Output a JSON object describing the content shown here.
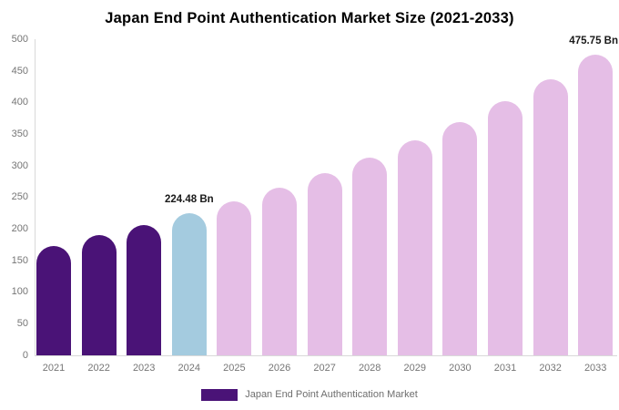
{
  "chart_data": {
    "type": "bar",
    "title": "Japan End Point Authentication Market Size (2021-2033)",
    "xlabel": "",
    "ylabel": "",
    "unit": "Bn",
    "categories": [
      "2021",
      "2022",
      "2023",
      "2024",
      "2025",
      "2026",
      "2027",
      "2028",
      "2029",
      "2030",
      "2031",
      "2032",
      "2033"
    ],
    "values": [
      173,
      190,
      207,
      224.48,
      244,
      265,
      288,
      313,
      340,
      369,
      402,
      437,
      475.75
    ],
    "bar_colors": [
      "#4A1377",
      "#4A1377",
      "#4A1377",
      "#A4CBDF",
      "#E5BEE6",
      "#E5BEE6",
      "#E5BEE6",
      "#E5BEE6",
      "#E5BEE6",
      "#E5BEE6",
      "#E5BEE6",
      "#E5BEE6",
      "#E5BEE6"
    ],
    "annotations": [
      {
        "category": "2024",
        "text": "224.48 Bn"
      },
      {
        "category": "2033",
        "text": "475.75 Bn"
      }
    ],
    "ylim": [
      0,
      500
    ],
    "ytick_step": 50,
    "yticks": [
      "0",
      "50",
      "100",
      "150",
      "200",
      "250",
      "300",
      "350",
      "400",
      "450",
      "500"
    ],
    "grid": false,
    "legend": {
      "position": "bottom",
      "items": [
        {
          "label": "Japan End Point Authentication Market",
          "color": "#4A1377"
        }
      ]
    },
    "colors": {
      "historical_bar": "#4A1377",
      "current_year_bar": "#A4CBDF",
      "forecast_bar": "#E5BEE6",
      "axis_line": "#d9d9d9",
      "tick_text": "#757575",
      "annotation_text": "#1a1a1a",
      "title_text": "#000000",
      "legend_text": "#6e6e6e",
      "background": "#ffffff"
    }
  }
}
